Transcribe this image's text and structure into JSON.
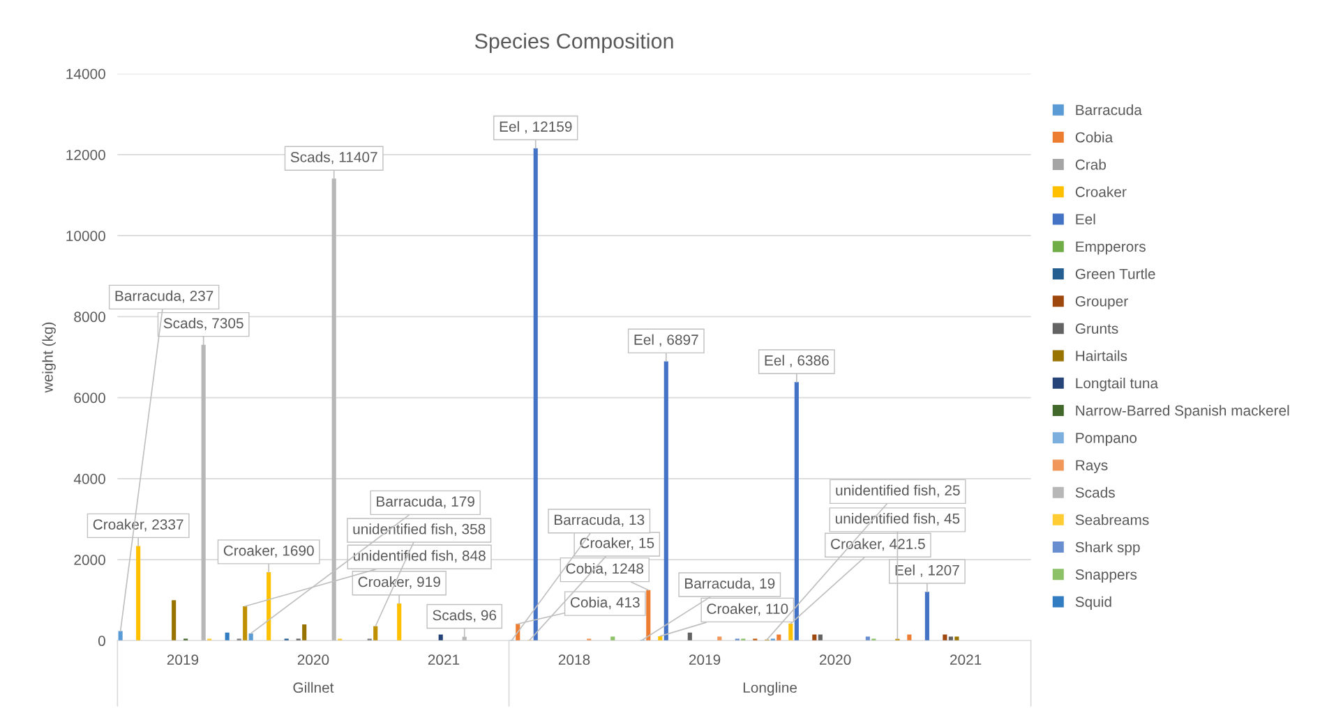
{
  "chart_data": {
    "type": "bar",
    "title": "Species Composition",
    "ylabel": "weight (kg)",
    "categories": [
      "2019",
      "2020",
      "2021",
      "2018",
      "2019",
      "2020",
      "2021"
    ],
    "annotations": [
      "Gillnet",
      "Longline"
    ],
    "ylim": [
      0,
      14000
    ],
    "yticks": [
      0,
      2000,
      4000,
      6000,
      8000,
      10000,
      12000,
      14000
    ],
    "grid": "y",
    "legend": "right",
    "series": [
      {
        "name": "Barracuda",
        "color": "#5b9bd5",
        "values": [
          237,
          179,
          null,
          13,
          19,
          50,
          null
        ],
        "value_labels": [
          "Barracuda, 237",
          "Barracuda, 179",
          null,
          "Barracuda, 13",
          "Barracuda, 19",
          null,
          null
        ]
      },
      {
        "name": "Cobia",
        "color": "#ed7d31",
        "values": [
          null,
          null,
          null,
          413,
          1248,
          150,
          150
        ],
        "value_labels": [
          null,
          null,
          null,
          "Cobia, 413",
          "Cobia, 1248",
          null,
          null
        ]
      },
      {
        "name": "Crab",
        "color": "#a5a5a5",
        "values": [
          null,
          null,
          null,
          null,
          null,
          null,
          null
        ]
      },
      {
        "name": "Croaker",
        "color": "#ffc000",
        "values": [
          2337,
          1690,
          919,
          15,
          110,
          421.5,
          null
        ],
        "value_labels": [
          "Croaker, 2337",
          "Croaker, 1690",
          "Croaker, 919",
          "Croaker, 15",
          "Croaker, 110",
          "Croaker, 421.5",
          null
        ]
      },
      {
        "name": "Eel",
        "color": "#4472c4",
        "values": [
          null,
          null,
          null,
          12159,
          6897,
          6386,
          1207
        ],
        "value_labels": [
          null,
          null,
          null,
          "Eel , 12159",
          "Eel , 6897",
          "Eel , 6386",
          "Eel , 1207"
        ]
      },
      {
        "name": "Empperors",
        "color": "#70ad47",
        "values": [
          null,
          null,
          null,
          null,
          null,
          null,
          null
        ]
      },
      {
        "name": "Green Turtle",
        "color": "#255e91",
        "values": [
          null,
          50,
          null,
          null,
          null,
          null,
          null
        ]
      },
      {
        "name": "Grouper",
        "color": "#9e480e",
        "values": [
          null,
          null,
          null,
          null,
          null,
          150,
          150
        ]
      },
      {
        "name": "Grunts",
        "color": "#636363",
        "values": [
          null,
          50,
          null,
          null,
          200,
          150,
          100
        ]
      },
      {
        "name": "Hairtails",
        "color": "#997300",
        "values": [
          1000,
          400,
          null,
          null,
          null,
          null,
          100
        ]
      },
      {
        "name": "Longtail tuna",
        "color": "#264478",
        "values": [
          null,
          null,
          150,
          null,
          null,
          null,
          null
        ]
      },
      {
        "name": "Narrow-Barred Spanish mackerel",
        "color": "#43682b",
        "values": [
          50,
          null,
          null,
          null,
          null,
          null,
          null
        ]
      },
      {
        "name": "Pompano",
        "color": "#7cafdd",
        "values": [
          null,
          null,
          null,
          null,
          null,
          null,
          null
        ]
      },
      {
        "name": "Rays",
        "color": "#f1975a",
        "values": [
          null,
          null,
          null,
          50,
          100,
          null,
          null
        ]
      },
      {
        "name": "Scads",
        "color": "#b7b7b7",
        "values": [
          7305,
          11407,
          96,
          null,
          null,
          null,
          null
        ],
        "value_labels": [
          "Scads, 7305",
          "Scads, 11407",
          "Scads, 96",
          null,
          null,
          null,
          null
        ]
      },
      {
        "name": "Seabreams",
        "color": "#ffcd33",
        "values": [
          50,
          50,
          null,
          null,
          null,
          null,
          null
        ]
      },
      {
        "name": "Shark spp",
        "color": "#698ed0",
        "values": [
          null,
          null,
          null,
          null,
          50,
          100,
          null
        ]
      },
      {
        "name": "Snappers",
        "color": "#8cc168",
        "values": [
          null,
          null,
          null,
          100,
          50,
          50,
          null
        ]
      },
      {
        "name": "Squid",
        "color": "#327dc2",
        "values": [
          200,
          null,
          null,
          null,
          null,
          null,
          null
        ]
      },
      {
        "color": "#c55a11",
        "values": [
          null,
          null,
          null,
          null,
          50,
          null,
          null
        ]
      },
      {
        "color": "#7c7c7c",
        "values": [
          50,
          50,
          null,
          null,
          null,
          null,
          null
        ]
      },
      {
        "color": "#bf9000",
        "values": [
          848,
          358,
          null,
          null,
          25,
          45,
          null
        ],
        "value_labels": [
          "unidentified fish, 848",
          "unidentified fish, 358",
          null,
          null,
          "unidentified fish, 25",
          "unidentified fish, 45",
          null
        ]
      }
    ]
  }
}
